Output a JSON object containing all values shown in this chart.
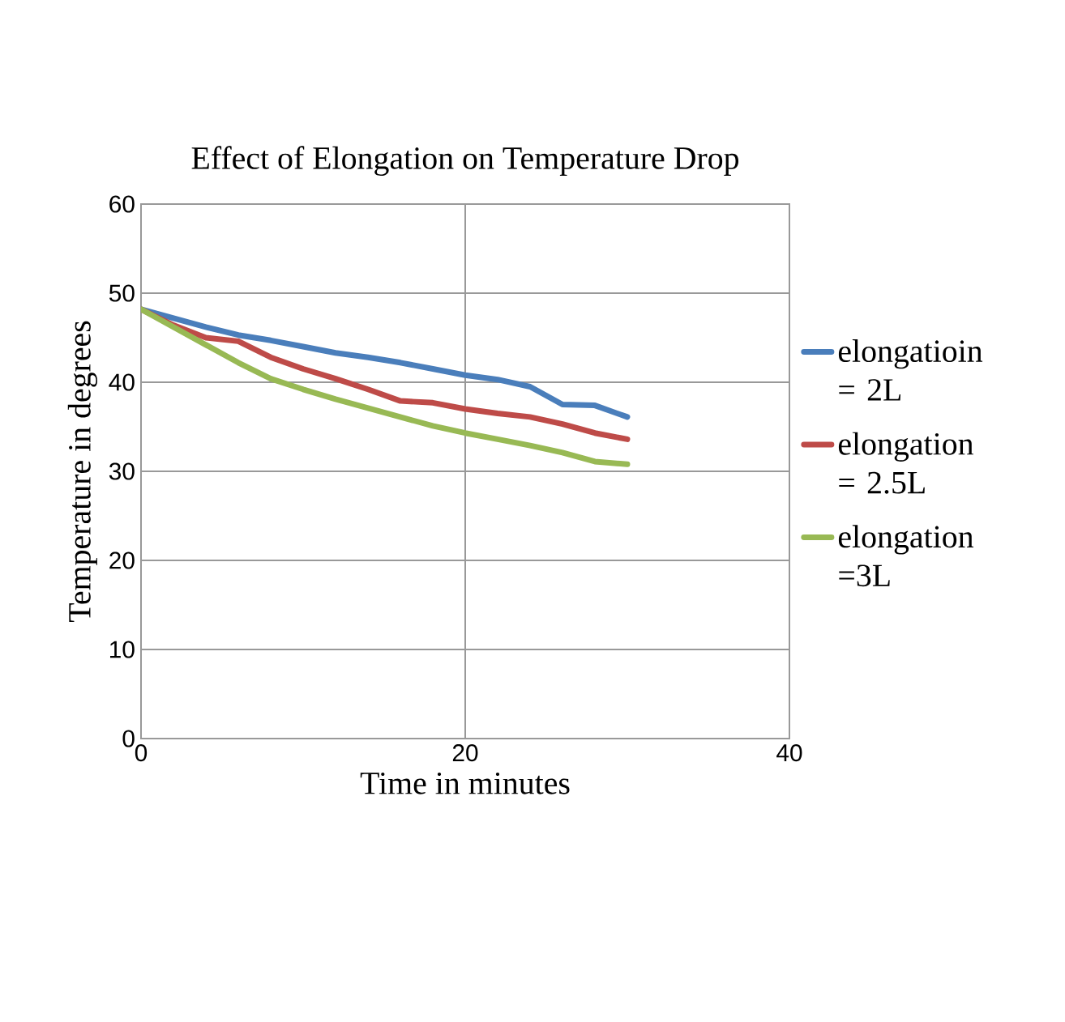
{
  "chart_data": {
    "type": "line",
    "title": "Effect of Elongation on Temperature Drop",
    "xlabel": "Time in minutes",
    "ylabel": "Temperature in degrees",
    "x": [
      0,
      2,
      4,
      6,
      8,
      10,
      12,
      14,
      16,
      18,
      20,
      22,
      24,
      26,
      28,
      30
    ],
    "series": [
      {
        "name": "elongatioin = 2L",
        "color": "#4a7ebb",
        "values": [
          48.2,
          47.2,
          46.2,
          45.3,
          44.7,
          44.0,
          43.3,
          42.8,
          42.2,
          41.5,
          40.8,
          40.3,
          39.5,
          37.5,
          37.4,
          36.1
        ]
      },
      {
        "name": "elongation = 2.5L",
        "color": "#be4b48",
        "values": [
          48.2,
          46.4,
          45.0,
          44.6,
          42.8,
          41.5,
          40.4,
          39.2,
          37.9,
          37.7,
          37.0,
          36.5,
          36.1,
          35.3,
          34.3,
          33.6
        ]
      },
      {
        "name": "elongation =3L",
        "color": "#98b954",
        "values": [
          48.2,
          46.2,
          44.2,
          42.2,
          40.4,
          39.2,
          38.1,
          37.1,
          36.1,
          35.1,
          34.3,
          33.6,
          32.9,
          32.1,
          31.1,
          30.8
        ]
      }
    ],
    "xlim": [
      0,
      40
    ],
    "ylim": [
      0,
      60
    ],
    "xticks": [
      0,
      20,
      40
    ],
    "yticks": [
      0,
      10,
      20,
      30,
      40,
      50,
      60
    ],
    "grid": true,
    "legend": "right",
    "marker": "none",
    "line_style": "solid"
  }
}
